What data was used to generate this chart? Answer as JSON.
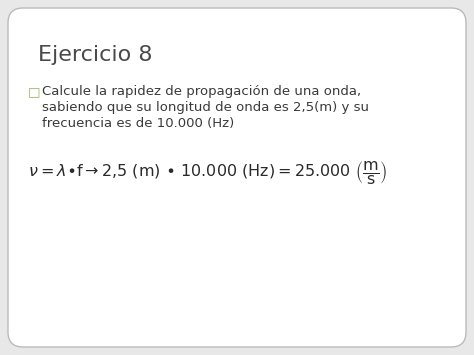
{
  "title": "Ejercicio 8",
  "title_fontsize": 16,
  "title_color": "#4a4a4a",
  "bullet_char": "□",
  "bullet_color": "#8fbc4f",
  "text_line1": "Calcule la rapidez de propagación de una onda,",
  "text_line2": "sabiendo que su longitud de onda es 2,5(m) y su",
  "text_line3": "frecuencia es de 10.000 (Hz)",
  "text_fontsize": 9.5,
  "text_color": "#3a3a3a",
  "formula_color": "#2a2a2a",
  "formula_fontsize": 11.5,
  "background_color": "#e8e8e8",
  "card_color": "#ffffff",
  "border_color": "#bbbbbb"
}
